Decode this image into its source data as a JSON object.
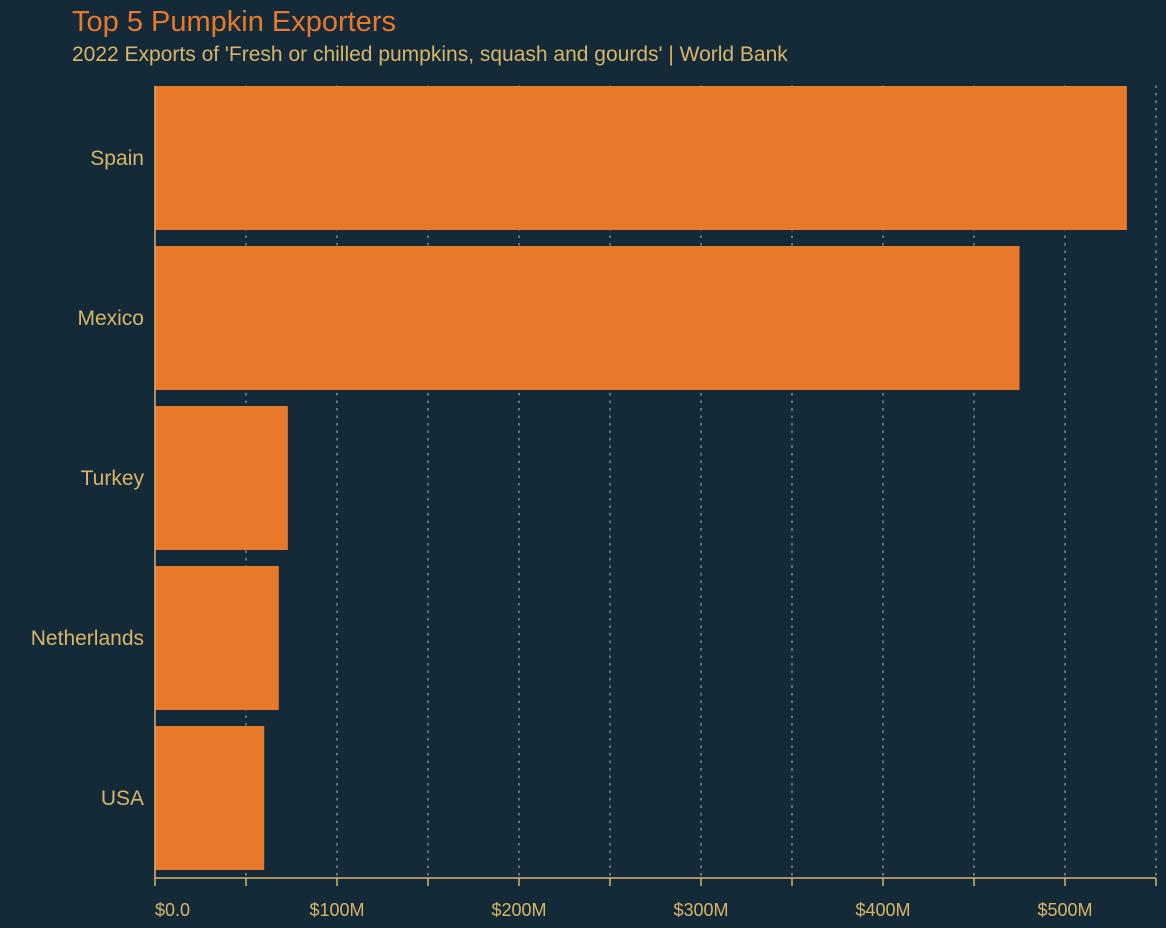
{
  "title": "Top 5 Pumpkin Exporters",
  "subtitle": "2022 Exports of 'Fresh or chilled pumpkins, squash and gourds' | World Bank",
  "chart_data": {
    "type": "bar",
    "orientation": "horizontal",
    "categories": [
      "Spain",
      "Mexico",
      "Turkey",
      "Netherlands",
      "USA"
    ],
    "values": [
      534,
      475,
      73,
      68,
      60
    ],
    "value_unit": "USD millions",
    "xlim": [
      0,
      550
    ],
    "x_ticks": [
      0,
      100,
      200,
      300,
      400,
      500
    ],
    "x_tick_labels": [
      "$0.0",
      "$100M",
      "$200M",
      "$300M",
      "$400M",
      "$500M"
    ],
    "grid": "vertical dotted",
    "legend": "none",
    "colors": {
      "background": "#142a38",
      "bar": "#e8792b",
      "title": "#e8792b",
      "text": "#d9b568",
      "grid": "#8fa3ad"
    }
  }
}
